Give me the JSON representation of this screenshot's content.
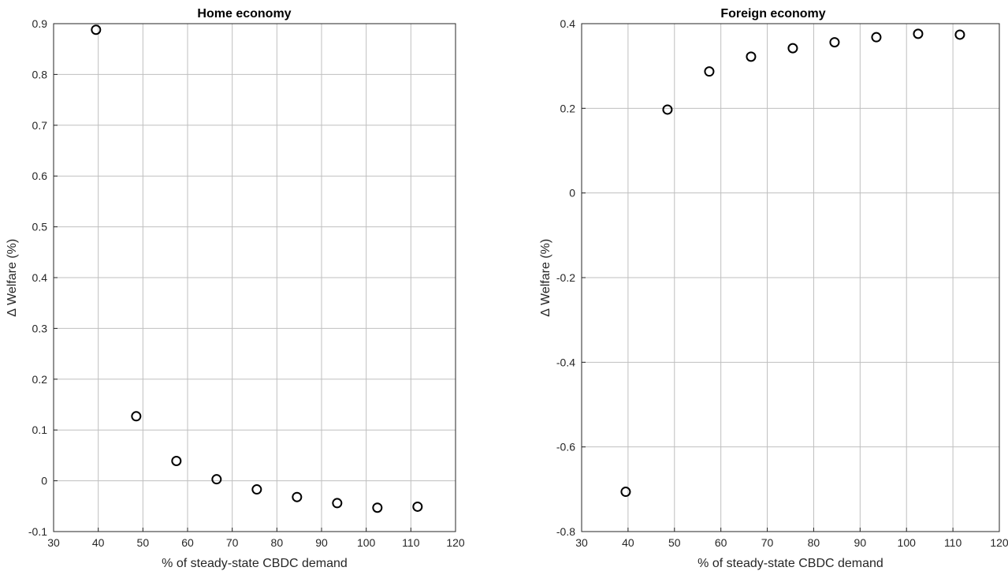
{
  "chart_data": [
    {
      "type": "scatter",
      "title": "Home economy",
      "xlabel": "% of steady-state CBDC demand",
      "ylabel": "∆ Welfare (%)",
      "xlim": [
        30,
        120
      ],
      "ylim": [
        -0.1,
        0.9
      ],
      "xticks": [
        30,
        40,
        50,
        60,
        70,
        80,
        90,
        100,
        110,
        120
      ],
      "yticks": [
        -0.1,
        0,
        0.1,
        0.2,
        0.3,
        0.4,
        0.5,
        0.6,
        0.7,
        0.8,
        0.9
      ],
      "xtick_labels": [
        "30",
        "40",
        "50",
        "60",
        "70",
        "80",
        "90",
        "100",
        "110",
        "120"
      ],
      "ytick_labels": [
        "-0.1",
        "0",
        "0.1",
        "0.2",
        "0.3",
        "0.4",
        "0.5",
        "0.6",
        "0.7",
        "0.8",
        "0.9"
      ],
      "grid": true,
      "marker": "open-circle",
      "marker_color": "#000000",
      "x": [
        39.5,
        48.5,
        57.5,
        66.5,
        75.5,
        84.5,
        93.5,
        102.5,
        111.5
      ],
      "y": [
        0.888,
        0.127,
        0.039,
        0.003,
        -0.017,
        -0.032,
        -0.044,
        -0.053,
        -0.051
      ]
    },
    {
      "type": "scatter",
      "title": "Foreign economy",
      "xlabel": "% of steady-state CBDC demand",
      "ylabel": "∆ Welfare (%)",
      "xlim": [
        30,
        120
      ],
      "ylim": [
        -0.8,
        0.4
      ],
      "xticks": [
        30,
        40,
        50,
        60,
        70,
        80,
        90,
        100,
        110,
        120
      ],
      "yticks": [
        -0.8,
        -0.6,
        -0.4,
        -0.2,
        0,
        0.2,
        0.4
      ],
      "xtick_labels": [
        "30",
        "40",
        "50",
        "60",
        "70",
        "80",
        "90",
        "100",
        "110",
        "120"
      ],
      "ytick_labels": [
        "-0.8",
        "-0.6",
        "-0.4",
        "-0.2",
        "0",
        "0.2",
        "0.4"
      ],
      "grid": true,
      "marker": "open-circle",
      "marker_color": "#000000",
      "x": [
        39.5,
        48.5,
        57.5,
        66.5,
        75.5,
        84.5,
        93.5,
        102.5,
        111.5
      ],
      "y": [
        -0.706,
        0.197,
        0.287,
        0.322,
        0.342,
        0.356,
        0.368,
        0.376,
        0.374
      ]
    }
  ]
}
